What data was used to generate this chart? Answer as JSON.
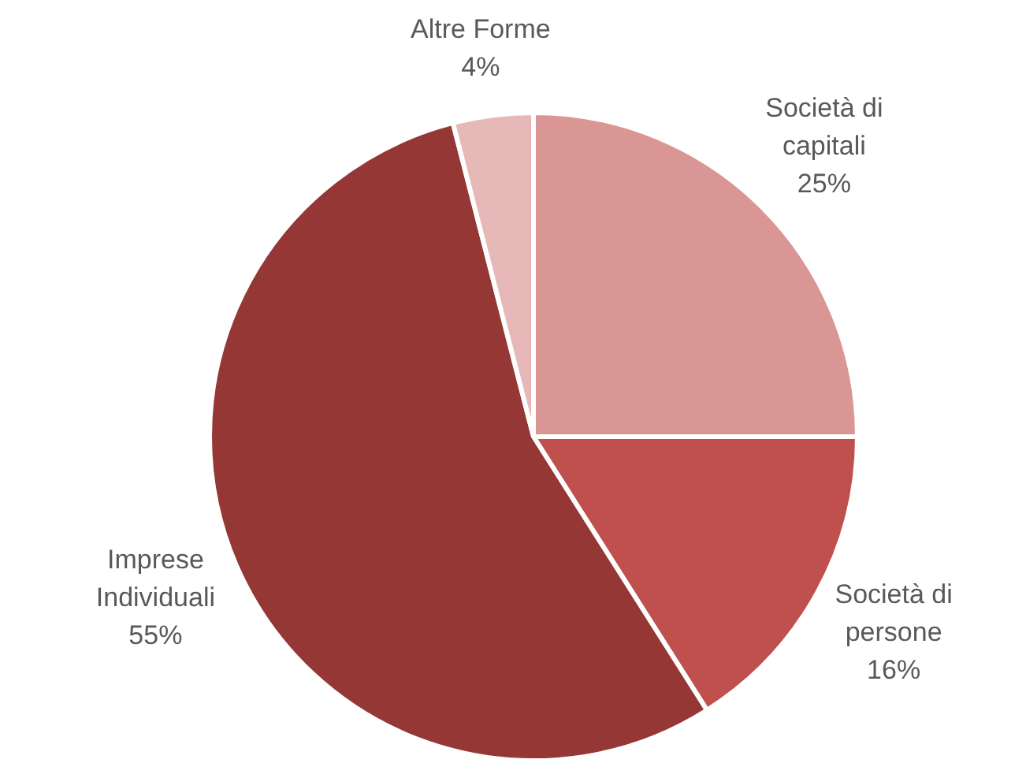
{
  "chart_data": {
    "type": "pie",
    "categories": [
      "Società di capitali",
      "Società di persone",
      "Imprese Individuali",
      "Altre Forme"
    ],
    "values": [
      25,
      16,
      55,
      4
    ],
    "colors": [
      "#d99694",
      "#c0504d",
      "#953735",
      "#e6b9b8"
    ],
    "value_labels": [
      "25%",
      "16%",
      "55%",
      "4%"
    ],
    "legend": false
  }
}
